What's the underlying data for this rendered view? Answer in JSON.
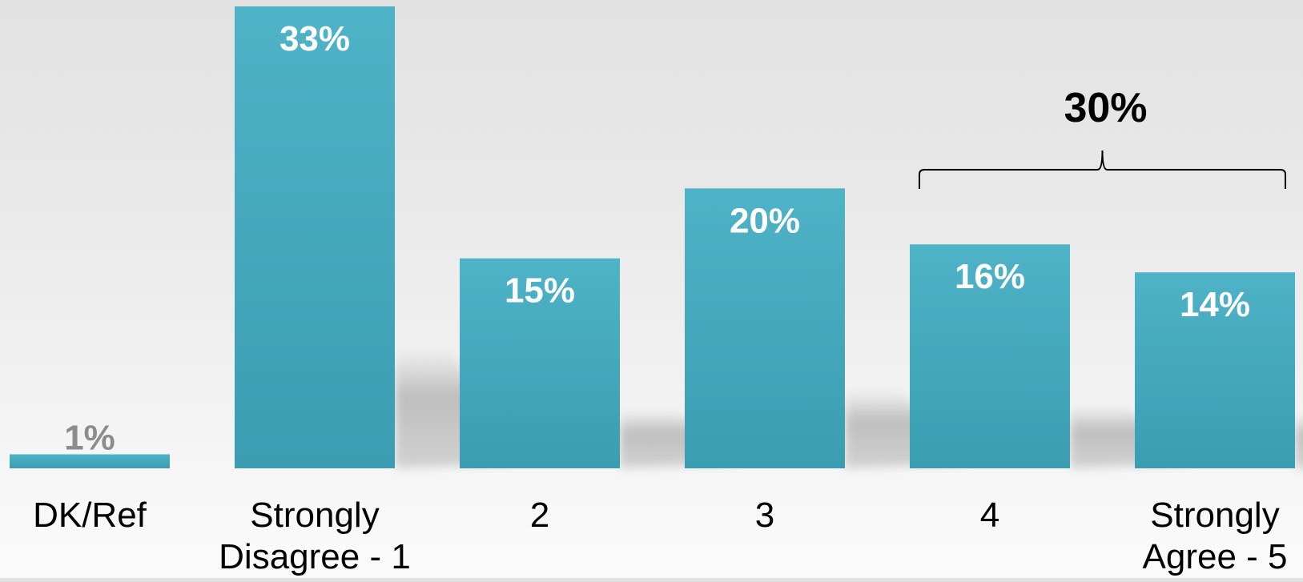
{
  "chart_data": {
    "type": "bar",
    "categories": [
      [
        "DK/Ref"
      ],
      [
        "Strongly",
        "Disagree - 1"
      ],
      [
        "2"
      ],
      [
        "3"
      ],
      [
        "4"
      ],
      [
        "Strongly",
        "Agree - 5"
      ]
    ],
    "values": [
      1,
      33,
      15,
      20,
      16,
      14
    ],
    "data_labels": [
      "1%",
      "33%",
      "15%",
      "20%",
      "16%",
      "14%"
    ],
    "ylim": [
      0,
      33
    ],
    "grid": false,
    "legend": "none",
    "colors": {
      "bar_top": "#4fb3c8",
      "bar_bottom": "#3a9db2",
      "label_inside": "#ffffff",
      "label_outside": "#8c8c8c",
      "category_text": "#000000",
      "bracket": "#000000"
    },
    "annotations": [
      {
        "text": "30%",
        "type": "bracket",
        "spans": [
          4,
          5
        ]
      }
    ]
  }
}
